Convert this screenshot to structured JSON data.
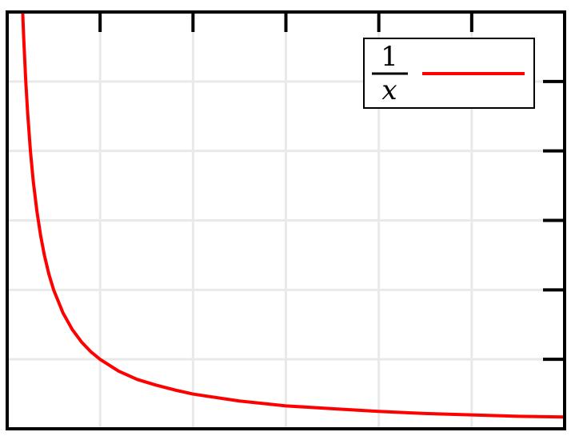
{
  "chart_data": {
    "type": "line",
    "title": "",
    "xlabel": "",
    "ylabel": "",
    "xlim": [
      0,
      6
    ],
    "ylim": [
      0,
      6
    ],
    "x_gridlines": [
      1,
      2,
      3,
      4,
      5
    ],
    "y_gridlines": [
      1,
      2,
      3,
      4,
      5
    ],
    "grid": true,
    "legend_position": "top-right",
    "color": "#ff0000",
    "series": [
      {
        "name": {
          "numerator": "1",
          "denominator": "x"
        },
        "color": "#ff0000",
        "x": [
          0.16,
          0.17,
          0.18,
          0.2,
          0.22,
          0.25,
          0.28,
          0.32,
          0.36,
          0.4,
          0.45,
          0.5,
          0.6,
          0.7,
          0.8,
          0.9,
          1.0,
          1.2,
          1.4,
          1.6,
          1.8,
          2.0,
          2.5,
          3.0,
          3.5,
          4.0,
          4.5,
          5.0,
          5.5,
          6.0
        ],
        "y": [
          6.25,
          5.88,
          5.56,
          5.0,
          4.55,
          4.0,
          3.57,
          3.13,
          2.78,
          2.5,
          2.22,
          2.0,
          1.67,
          1.43,
          1.25,
          1.11,
          1.0,
          0.83,
          0.71,
          0.63,
          0.56,
          0.5,
          0.4,
          0.33,
          0.29,
          0.25,
          0.22,
          0.2,
          0.18,
          0.17
        ]
      }
    ]
  }
}
